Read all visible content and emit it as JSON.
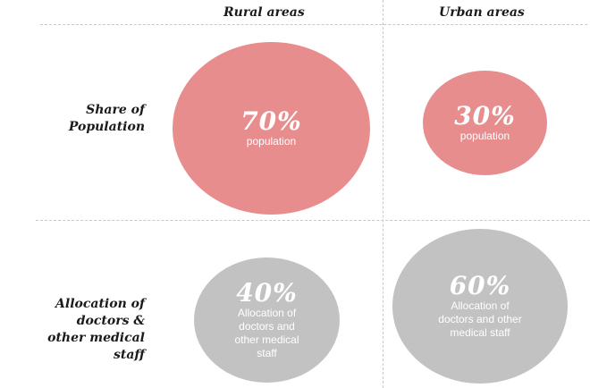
{
  "columns": {
    "rural": "Rural areas",
    "urban": "Urban areas"
  },
  "rows": {
    "population": [
      "Share of",
      "Population"
    ],
    "allocation": [
      "Allocation of",
      "doctors &",
      "other medical",
      "staff"
    ]
  },
  "cells": {
    "rural_population": {
      "percent": "70%",
      "label": [
        "population"
      ],
      "color": "#e88d8e"
    },
    "urban_population": {
      "percent": "30%",
      "label": [
        "population"
      ],
      "color": "#e88d8e"
    },
    "rural_allocation": {
      "percent": "40%",
      "label": [
        "Allocation of",
        "doctors and",
        "other medical",
        "staff"
      ],
      "color": "#c2c2c2"
    },
    "urban_allocation": {
      "percent": "60%",
      "label": [
        "Allocation of",
        "doctors and other",
        "medical staff"
      ],
      "color": "#c2c2c2"
    }
  }
}
